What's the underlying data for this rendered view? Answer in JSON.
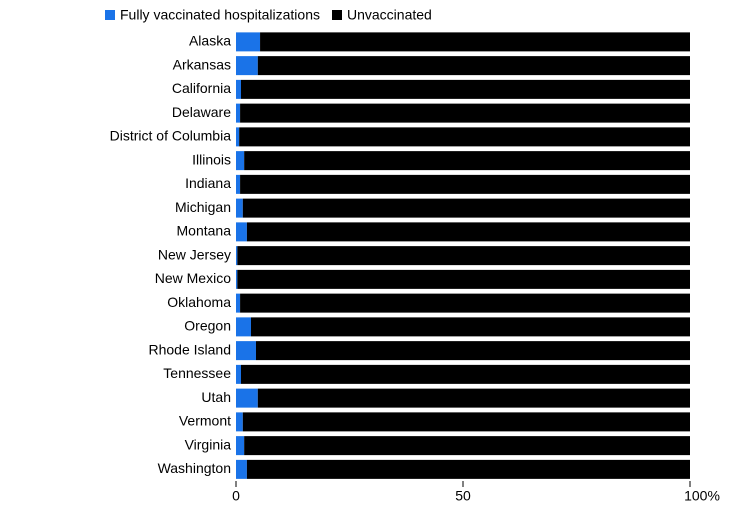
{
  "chart_data": {
    "type": "stacked_barh",
    "categories": [
      "Alaska",
      "Arkansas",
      "California",
      "Delaware",
      "District of Columbia",
      "Illinois",
      "Indiana",
      "Michigan",
      "Montana",
      "New Jersey",
      "New Mexico",
      "Oklahoma",
      "Oregon",
      "Rhode Island",
      "Tennessee",
      "Utah",
      "Vermont",
      "Virginia",
      "Washington"
    ],
    "series": [
      {
        "name": "Fully vaccinated hospitalizations",
        "color": "#1a73e8",
        "values": [
          5.3,
          4.8,
          1.1,
          0.9,
          0.7,
          1.8,
          0.9,
          1.5,
          2.4,
          0.3,
          0.3,
          0.9,
          3.3,
          4.4,
          1.1,
          4.8,
          1.5,
          1.8,
          2.4
        ]
      },
      {
        "name": "Unvaccinated",
        "color": "#000000",
        "values": [
          94.7,
          95.2,
          98.9,
          99.1,
          99.3,
          98.2,
          99.1,
          98.5,
          97.6,
          99.7,
          99.7,
          99.1,
          96.7,
          95.6,
          98.9,
          95.2,
          98.5,
          98.2,
          97.6
        ]
      }
    ],
    "xlim": [
      0,
      100
    ],
    "xticks": [
      0,
      50,
      {
        "value": 100,
        "label": "100%"
      }
    ]
  }
}
